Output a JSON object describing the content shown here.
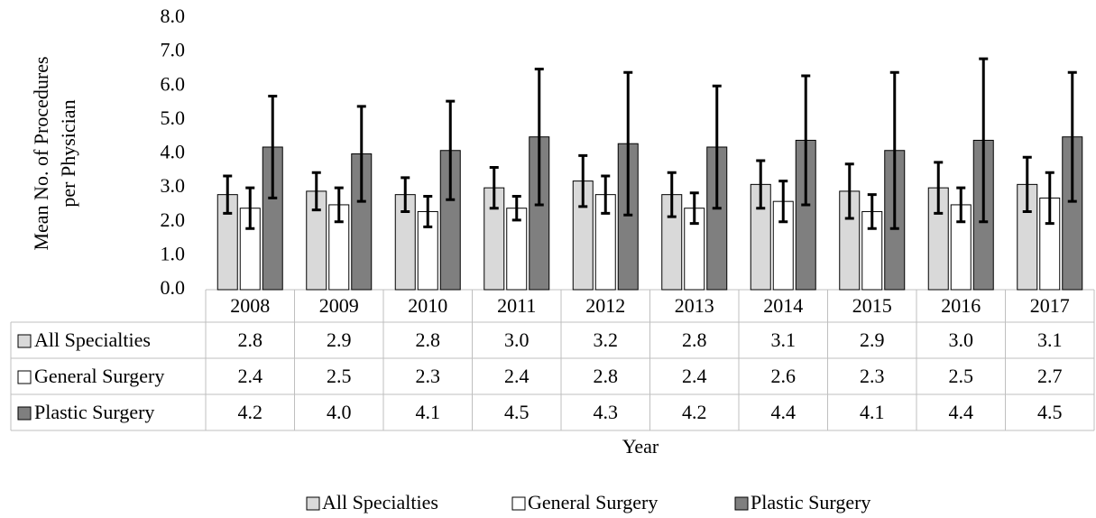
{
  "chart_data": {
    "type": "bar",
    "ylabel_lines": [
      "Mean No. of Procedures",
      "per Physician"
    ],
    "xlabel": "Year",
    "categories": [
      "2008",
      "2009",
      "2010",
      "2011",
      "2012",
      "2013",
      "2014",
      "2015",
      "2016",
      "2017"
    ],
    "series": [
      {
        "name": "All Specialties",
        "color": "#d9d9d9",
        "values": [
          2.8,
          2.9,
          2.8,
          3.0,
          3.2,
          2.8,
          3.1,
          2.9,
          3.0,
          3.1
        ],
        "value_labels": [
          "2.8",
          "2.9",
          "2.8",
          "3.0",
          "3.2",
          "2.8",
          "3.1",
          "2.9",
          "3.0",
          "3.1"
        ],
        "errors": [
          0.55,
          0.55,
          0.5,
          0.6,
          0.75,
          0.65,
          0.7,
          0.8,
          0.75,
          0.8
        ]
      },
      {
        "name": "General Surgery",
        "color": "#ffffff",
        "values": [
          2.4,
          2.5,
          2.3,
          2.4,
          2.8,
          2.4,
          2.6,
          2.3,
          2.5,
          2.7
        ],
        "value_labels": [
          "2.4",
          "2.5",
          "2.3",
          "2.4",
          "2.8",
          "2.4",
          "2.6",
          "2.3",
          "2.5",
          "2.7"
        ],
        "errors": [
          0.6,
          0.5,
          0.45,
          0.35,
          0.55,
          0.45,
          0.6,
          0.5,
          0.5,
          0.75
        ]
      },
      {
        "name": "Plastic Surgery",
        "color": "#7f7f7f",
        "values": [
          4.2,
          4.0,
          4.1,
          4.5,
          4.3,
          4.2,
          4.4,
          4.1,
          4.4,
          4.5
        ],
        "value_labels": [
          "4.2",
          "4.0",
          "4.1",
          "4.5",
          "4.3",
          "4.2",
          "4.4",
          "4.1",
          "4.4",
          "4.5"
        ],
        "errors": [
          1.5,
          1.4,
          1.45,
          2.0,
          2.1,
          1.8,
          1.9,
          2.3,
          2.4,
          1.9
        ]
      }
    ],
    "ylim": [
      0,
      8
    ],
    "yticks": [
      {
        "value": 0,
        "label": "0.0"
      },
      {
        "value": 1,
        "label": "1.0"
      },
      {
        "value": 2,
        "label": "2.0"
      },
      {
        "value": 3,
        "label": "3.0"
      },
      {
        "value": 4,
        "label": "4.0"
      },
      {
        "value": 5,
        "label": "5.0"
      },
      {
        "value": 6,
        "label": "6.0"
      },
      {
        "value": 7,
        "label": "7.0"
      },
      {
        "value": 8,
        "label": "8.0"
      }
    ],
    "legend": "bottom"
  }
}
